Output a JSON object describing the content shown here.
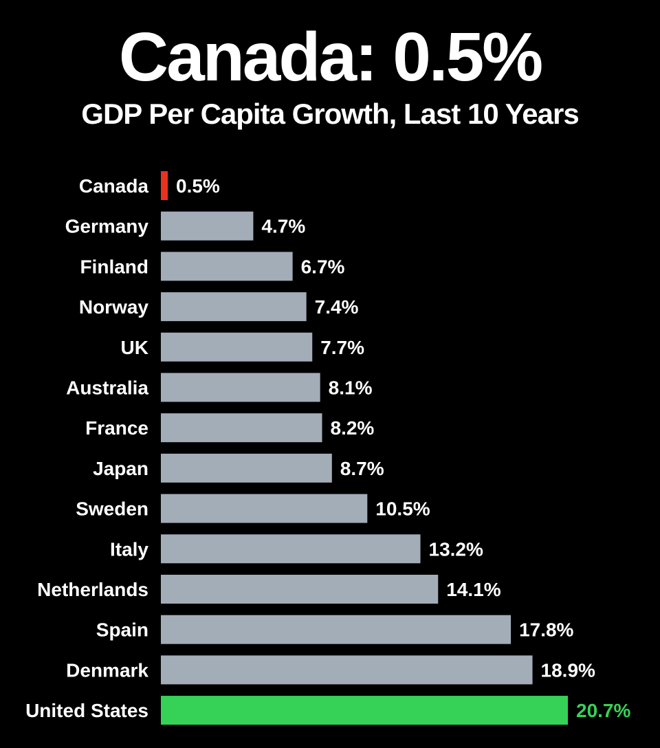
{
  "chart_data": {
    "type": "bar",
    "orientation": "horizontal",
    "title": "Canada: 0.5%",
    "subtitle": "GDP Per Capita Growth, Last 10 Years",
    "xlabel": "",
    "ylabel": "",
    "xlim": [
      0,
      20.7
    ],
    "grid": false,
    "legend": "none",
    "categories": [
      "Canada",
      "Germany",
      "Finland",
      "Norway",
      "UK",
      "Australia",
      "France",
      "Japan",
      "Sweden",
      "Italy",
      "Netherlands",
      "Spain",
      "Denmark",
      "United States"
    ],
    "values": [
      0.5,
      4.7,
      6.7,
      7.4,
      7.7,
      8.1,
      8.2,
      8.7,
      10.5,
      13.2,
      14.1,
      17.8,
      18.9,
      20.7
    ],
    "value_labels": [
      "0.5%",
      "4.7%",
      "6.7%",
      "7.4%",
      "7.7%",
      "8.1%",
      "8.2%",
      "8.7%",
      "10.5%",
      "13.2%",
      "14.1%",
      "17.8%",
      "18.9%",
      "20.7%"
    ],
    "highlight": {
      "Canada": "low",
      "United States": "high"
    }
  },
  "colors": {
    "background": "#000000",
    "text": "#ffffff",
    "bar_default": "#a3adb8",
    "bar_low": "#e8321f",
    "bar_high": "#36d257",
    "label_high": "#36d257"
  }
}
